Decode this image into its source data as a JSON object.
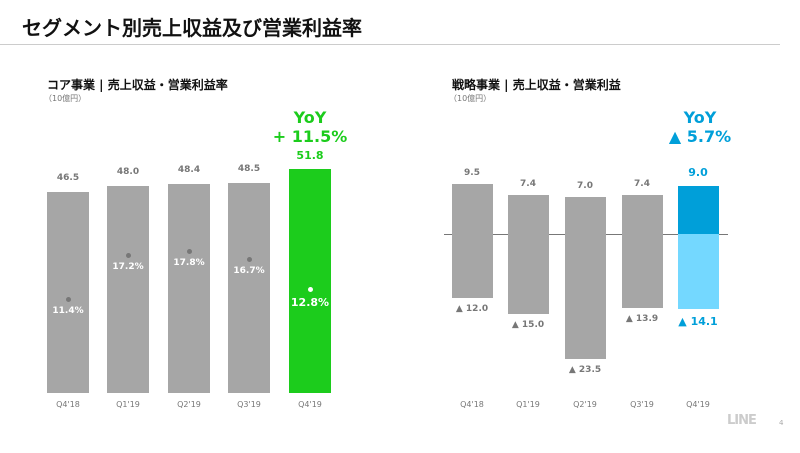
{
  "title": "セグメント別売上収益及び営業利益率",
  "page_number": "4",
  "logo": "LINE",
  "colors": {
    "core_accent": "#1ccc1c",
    "strategic_pos": "#009fd9",
    "strategic_neg": "#74d8ff",
    "bar": "#a6a6a6"
  },
  "chart_data": [
    {
      "type": "bar",
      "title": "コア事業 | 売上収益・営業利益率",
      "unit": "（10億円）",
      "categories": [
        "Q4'18",
        "Q1'19",
        "Q2'19",
        "Q3'19",
        "Q4'19"
      ],
      "series": [
        {
          "name": "売上収益",
          "values": [
            46.5,
            48.0,
            48.4,
            48.5,
            51.8
          ],
          "labels": [
            "46.5",
            "48.0",
            "48.4",
            "48.5",
            "51.8"
          ]
        },
        {
          "name": "営業利益率",
          "values": [
            11.4,
            17.2,
            17.8,
            16.7,
            12.8
          ],
          "labels": [
            "11.4%",
            "17.2%",
            "17.8%",
            "16.7%",
            "12.8%"
          ]
        }
      ],
      "yoy_label": "YoY",
      "yoy_value": "+ 11.5%",
      "ylim": [
        0,
        55
      ]
    },
    {
      "type": "bar",
      "title": "戦略事業 | 売上収益・営業利益",
      "unit": "（10億円）",
      "categories": [
        "Q4'18",
        "Q1'19",
        "Q2'19",
        "Q3'19",
        "Q4'19"
      ],
      "series": [
        {
          "name": "売上収益",
          "values": [
            9.5,
            7.4,
            7.0,
            7.4,
            9.0
          ],
          "labels": [
            "9.5",
            "7.4",
            "7.0",
            "7.4",
            "9.0"
          ]
        },
        {
          "name": "営業利益",
          "values": [
            -12.0,
            -15.0,
            -23.5,
            -13.9,
            -14.1
          ],
          "labels": [
            "▲ 12.0",
            "▲ 15.0",
            "▲ 23.5",
            "▲ 13.9",
            "▲ 14.1"
          ]
        }
      ],
      "yoy_label": "YoY",
      "yoy_value": "▲ 5.7%",
      "ylim": [
        -25,
        10
      ]
    }
  ]
}
